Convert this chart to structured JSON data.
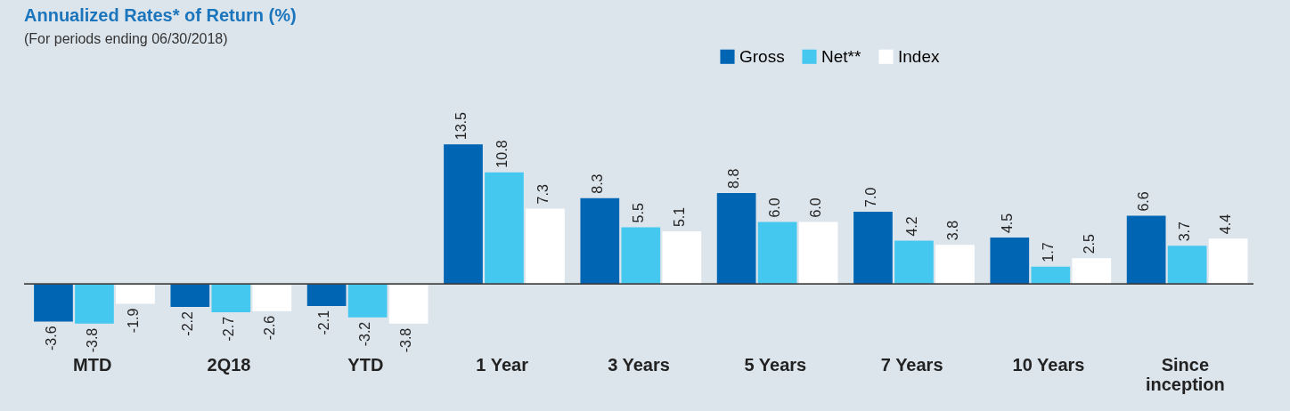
{
  "chart_data": {
    "type": "bar",
    "title": "Annualized Rates* of Return (%)",
    "subtitle": "(For periods ending 06/30/2018)",
    "categories": [
      "MTD",
      "2Q18",
      "YTD",
      "1 Year",
      "3 Years",
      "5 Years",
      "7 Years",
      "10 Years",
      "Since inception"
    ],
    "series": [
      {
        "name": "Gross",
        "color": "#0066b3",
        "values": [
          -3.6,
          -2.2,
          -2.1,
          13.5,
          8.3,
          8.8,
          7.0,
          4.5,
          6.6
        ],
        "value_labels": [
          "-3.6",
          "-2.2",
          "-2.1",
          "13.5",
          "8.3",
          "8.8",
          "7.0",
          "4.5",
          "6.6"
        ]
      },
      {
        "name": "Net**",
        "color": "#45c8f0",
        "values": [
          -3.8,
          -2.7,
          -3.2,
          10.8,
          5.5,
          6.0,
          4.2,
          1.7,
          3.7
        ],
        "value_labels": [
          "-3.8",
          "-2.7",
          "-3.2",
          "10.8",
          "5.5",
          "6.0",
          "4.2",
          "1.7",
          "3.7"
        ]
      },
      {
        "name": "Index",
        "color": "#ffffff",
        "values": [
          -1.9,
          -2.6,
          -3.8,
          7.3,
          5.1,
          6.0,
          3.8,
          2.5,
          4.4
        ],
        "value_labels": [
          "-1.9",
          "-2.6",
          "-3.8",
          "7.3",
          "5.1",
          "6.0",
          "3.8",
          "2.5",
          "4.4"
        ]
      }
    ],
    "legend": "top right",
    "grid": false
  }
}
